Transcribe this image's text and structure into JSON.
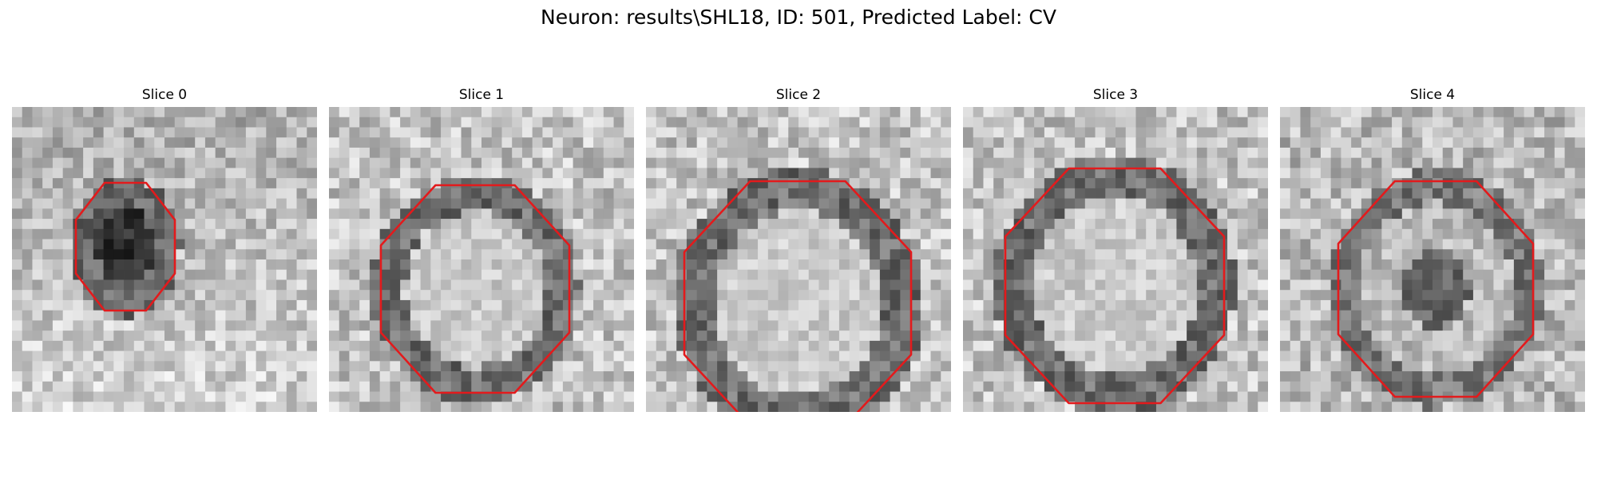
{
  "figure": {
    "title": "Neuron: results\\SHL18, ID: 501, Predicted Label: CV"
  },
  "panels": [
    {
      "title": "Slice 0",
      "tone": "dark-center"
    },
    {
      "title": "Slice 1",
      "tone": "bright-center"
    },
    {
      "title": "Slice 2",
      "tone": "bright-center"
    },
    {
      "title": "Slice 3",
      "tone": "bright-center"
    },
    {
      "title": "Slice 4",
      "tone": "mixed"
    }
  ],
  "style": {
    "contour_color": "#e31a1c",
    "colormap": "grayscale"
  }
}
